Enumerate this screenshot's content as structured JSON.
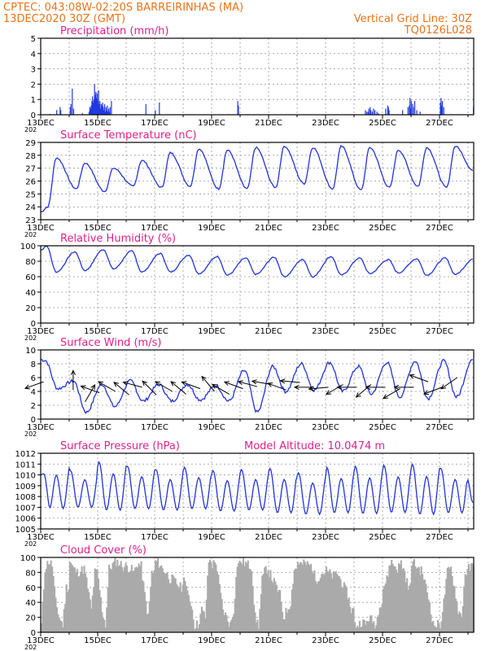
{
  "header": {
    "line1": "CPTEC:    043:08W-02:20S   BARREIRINHAS (MA)",
    "line2": "13DEC2020  30Z  (GMT)",
    "right1": "Vertical Grid Line: 30Z",
    "right2": "TQ0126L028"
  },
  "x_ticks": [
    "13DEC",
    "15DEC",
    "17DEC",
    "19DEC",
    "21DEC",
    "23DEC",
    "25DEC",
    "27DEC"
  ],
  "x_cut_label": "202",
  "colors": {
    "line": "#2233dd",
    "bar": "#1f3ae0",
    "cloud": "#aaaaaa",
    "header": "#e8731a",
    "title": "#e0208a"
  },
  "chart_data": [
    {
      "type": "bar",
      "title": "Precipitation  (mm/h)",
      "ylim": [
        0,
        5
      ],
      "yticks": [
        "0",
        "1",
        "2",
        "3",
        "4",
        "5"
      ],
      "series_desc": "hourly bars",
      "values": [
        0,
        0,
        0,
        0,
        0,
        0,
        0,
        0,
        0,
        0,
        0,
        0,
        0,
        0.05,
        0,
        0,
        0,
        0,
        0,
        0,
        0,
        0,
        0,
        0.3,
        0,
        0,
        0,
        0,
        0.5,
        0.3,
        0,
        0,
        0,
        0,
        0,
        0,
        0,
        0,
        0,
        0,
        0,
        0,
        0,
        0.5,
        0.7,
        0,
        1.7,
        0,
        0.4,
        0,
        0,
        0,
        0,
        0,
        0,
        0,
        0,
        0,
        0,
        0,
        0,
        0.1,
        0,
        0,
        0,
        0,
        0,
        0,
        0,
        0,
        0,
        0.2,
        0.5,
        0.4,
        0.6,
        0.9,
        1.2,
        0.8,
        1.0,
        2.0,
        1.3,
        1.5,
        1.1,
        1.4,
        0.9,
        1.6,
        0.7,
        0.9,
        0.4,
        0.7,
        0.6,
        0.8,
        0.5,
        0.3,
        0.7,
        0.2,
        0.5,
        0.3,
        0.6,
        0.2,
        0.4,
        0.2,
        0.5,
        0,
        0.9,
        0,
        0,
        0,
        0,
        0,
        0,
        0,
        0,
        0,
        0,
        0,
        0,
        0,
        0,
        0,
        0,
        0,
        0,
        0,
        0,
        0,
        0,
        0,
        0,
        0,
        0,
        0,
        0,
        0,
        0,
        0,
        0,
        0,
        0,
        0,
        0,
        0,
        0,
        0,
        0,
        0,
        0,
        0,
        0,
        0,
        0,
        0,
        0,
        0,
        0,
        0.7,
        0,
        0,
        0,
        0,
        0,
        0,
        0,
        0,
        0,
        0,
        0,
        0,
        0,
        0.3,
        0,
        0,
        0,
        0,
        0,
        0.8,
        0,
        0,
        0,
        0,
        0,
        0,
        0,
        0,
        0,
        0,
        0,
        0,
        0,
        0,
        0,
        0,
        0,
        0,
        0,
        0,
        0,
        0,
        0,
        0,
        0,
        0,
        0,
        0,
        0,
        0,
        0,
        0,
        0,
        0,
        0,
        0,
        0,
        0,
        0,
        0,
        0,
        0,
        0,
        0,
        0,
        0,
        0,
        0,
        0,
        0,
        0,
        0,
        0,
        0,
        0,
        0,
        0,
        0,
        0,
        0,
        0,
        0,
        0,
        0,
        0,
        0,
        0,
        0,
        0,
        0,
        0,
        0,
        0,
        0,
        0,
        0,
        0,
        0,
        0,
        0,
        0,
        0,
        0,
        0,
        0,
        0,
        0,
        0,
        0,
        0,
        0,
        0,
        0,
        0,
        0,
        0,
        0,
        0,
        0,
        0,
        0,
        0,
        0,
        0,
        0,
        0,
        0,
        0,
        0,
        0,
        0,
        0,
        0,
        0,
        0,
        0.9,
        0.6,
        0,
        0,
        0,
        0,
        0,
        0,
        0,
        0,
        0,
        0,
        0,
        0,
        0,
        0,
        0,
        0,
        0,
        0,
        0,
        0,
        0,
        0,
        0,
        0,
        0,
        0,
        0,
        0,
        0,
        0,
        0,
        0,
        0,
        0,
        0,
        0,
        0,
        0,
        0,
        0,
        0,
        0,
        0,
        0,
        0,
        0,
        0,
        0,
        0,
        0,
        0,
        0,
        0,
        0,
        0,
        0,
        0,
        0,
        0,
        0,
        0,
        0,
        0,
        0,
        0,
        0,
        0,
        0,
        0,
        0,
        0,
        0,
        0,
        0,
        0,
        0,
        0,
        0,
        0,
        0,
        0,
        0,
        0,
        0,
        0,
        0,
        0,
        0,
        0,
        0,
        0,
        0,
        0,
        0,
        0,
        0,
        0,
        0,
        0,
        0,
        0,
        0,
        0,
        0,
        0,
        0,
        0,
        0,
        0,
        0,
        0,
        0,
        0,
        0,
        0,
        0,
        0,
        0,
        0,
        0,
        0,
        0,
        0,
        0,
        0,
        0,
        0,
        0,
        0,
        0,
        0,
        0,
        0,
        0,
        0,
        0,
        0,
        0,
        0,
        0,
        0,
        0,
        0,
        0,
        0,
        0,
        0,
        0,
        0,
        0,
        0,
        0,
        0,
        0,
        0,
        0,
        0,
        0,
        0,
        0,
        0,
        0,
        0,
        0,
        0,
        0,
        0,
        0,
        0,
        0,
        0,
        0,
        0,
        0,
        0,
        0,
        0,
        0,
        0,
        0,
        0,
        0,
        0,
        0,
        0,
        0,
        0,
        0.3,
        0,
        0.2,
        0,
        0.2,
        0.4,
        0,
        0.5,
        0.3,
        0,
        0.2,
        0,
        0.4,
        0,
        0.3,
        0,
        0,
        0.2,
        0,
        0.1,
        0,
        0,
        0,
        0,
        0,
        0,
        0,
        0,
        0,
        0,
        0.4,
        0,
        0,
        0.6,
        0.5,
        0.3,
        0,
        0,
        0,
        0,
        0,
        0,
        0,
        0,
        0,
        0,
        0,
        0,
        0,
        0,
        0,
        0,
        0,
        0,
        0,
        0.3,
        0,
        0,
        0,
        0,
        0,
        0,
        0,
        0.5,
        0,
        0.6,
        1.1,
        0.4,
        0.9,
        0,
        0.7,
        0.5,
        0,
        0.9,
        0,
        0,
        0.3,
        0,
        0,
        0,
        0,
        0.2,
        0,
        0,
        0,
        0,
        0,
        0,
        0,
        0,
        0,
        0,
        0,
        0,
        0,
        0,
        0,
        0,
        0,
        0,
        0,
        0,
        0,
        0,
        0,
        0,
        0,
        0,
        0,
        0,
        0,
        0.8,
        1.1,
        0.6,
        0.9,
        0,
        0.5,
        0,
        0,
        0,
        0,
        0,
        0,
        0,
        0,
        0,
        0,
        0,
        0,
        0,
        0,
        0,
        0,
        0,
        0,
        0,
        0,
        0,
        0,
        0,
        0,
        0,
        0,
        0,
        0,
        0,
        0,
        0,
        0,
        0,
        0,
        0,
        0,
        0,
        0,
        0,
        0,
        0,
        0,
        0,
        0.5
      ]
    },
    {
      "type": "line",
      "title": "Surface Temperature  (nC)",
      "ylim": [
        23,
        29
      ],
      "yticks": [
        "23",
        "24",
        "25",
        "26",
        "27",
        "28",
        "29"
      ],
      "peaks": [
        27.8,
        27.4,
        27.0,
        27.6,
        28.2,
        28.5,
        28.4,
        28.6,
        28.7,
        28.6,
        28.7,
        28.6,
        28.4,
        28.6,
        28.7,
        28.8
      ],
      "troughs": [
        24.0,
        25.4,
        25.2,
        25.6,
        25.5,
        25.6,
        25.4,
        25.4,
        25.5,
        25.8,
        25.4,
        25.3,
        25.5,
        25.6,
        25.5,
        25.6
      ],
      "start": 23.6,
      "end": 26.8
    },
    {
      "type": "line",
      "title": "Relative Humidity  (%)",
      "ylim": [
        0,
        100
      ],
      "yticks": [
        "0",
        "20",
        "40",
        "60",
        "80",
        "100"
      ],
      "peaks": [
        100,
        92,
        95,
        93,
        90,
        88,
        86,
        84,
        85,
        82,
        86,
        84,
        82,
        83,
        84,
        83
      ],
      "troughs": [
        66,
        68,
        70,
        66,
        66,
        64,
        62,
        63,
        60,
        60,
        62,
        64,
        65,
        62,
        63,
        64
      ],
      "start": 94,
      "end": 82
    },
    {
      "type": "line",
      "title": "Surface Wind  (m/s)",
      "ylim": [
        0,
        10
      ],
      "yticks": [
        "0",
        "2",
        "4",
        "6",
        "8",
        "10"
      ],
      "peaks": [
        8.5,
        5.5,
        5.0,
        5.5,
        5.0,
        5.0,
        4.8,
        7.0,
        7.6,
        8.0,
        8.2,
        7.6,
        8.2,
        8.4,
        8.4,
        8.6
      ],
      "troughs": [
        4.4,
        1.0,
        1.8,
        2.6,
        2.6,
        2.8,
        2.6,
        1.0,
        4.0,
        4.2,
        4.0,
        3.6,
        3.2,
        3.0,
        3.2,
        3.4
      ],
      "start": 8.6,
      "end": 8.4,
      "arrows": [
        {
          "x": 0.05,
          "speed": 5.4,
          "dir_deg": 200
        },
        {
          "x": 0.57,
          "speed": 4.2,
          "dir_deg": 90
        },
        {
          "x": 0.78,
          "speed": 2.5,
          "dir_deg": 60
        },
        {
          "x": 1.03,
          "speed": 3.8,
          "dir_deg": 160
        },
        {
          "x": 1.31,
          "speed": 4.0,
          "dir_deg": 150
        },
        {
          "x": 1.55,
          "speed": 3.5,
          "dir_deg": 140
        },
        {
          "x": 1.78,
          "speed": 4.6,
          "dir_deg": 165
        },
        {
          "x": 2.03,
          "speed": 3.5,
          "dir_deg": 135
        },
        {
          "x": 2.31,
          "speed": 4.0,
          "dir_deg": 150
        },
        {
          "x": 2.55,
          "speed": 3.6,
          "dir_deg": 140
        },
        {
          "x": 2.8,
          "speed": 4.4,
          "dir_deg": 160
        },
        {
          "x": 3.05,
          "speed": 4.0,
          "dir_deg": 130
        },
        {
          "x": 3.31,
          "speed": 3.6,
          "dir_deg": 150
        },
        {
          "x": 3.55,
          "speed": 4.4,
          "dir_deg": 160
        },
        {
          "x": 3.8,
          "speed": 4.7,
          "dir_deg": 165
        },
        {
          "x": 4.05,
          "speed": 5.0,
          "dir_deg": 170
        },
        {
          "x": 4.31,
          "speed": 4.2,
          "dir_deg": 160
        },
        {
          "x": 4.55,
          "speed": 5.3,
          "dir_deg": 175
        },
        {
          "x": 4.8,
          "speed": 4.6,
          "dir_deg": 180
        },
        {
          "x": 5.05,
          "speed": 4.6,
          "dir_deg": 185
        },
        {
          "x": 5.31,
          "speed": 5.0,
          "dir_deg": 210
        },
        {
          "x": 5.55,
          "speed": 4.6,
          "dir_deg": 180
        },
        {
          "x": 5.8,
          "speed": 5.0,
          "dir_deg": 220
        },
        {
          "x": 6.05,
          "speed": 4.6,
          "dir_deg": 180
        },
        {
          "x": 6.31,
          "speed": 4.4,
          "dir_deg": 210
        },
        {
          "x": 6.55,
          "speed": 4.6,
          "dir_deg": 180
        },
        {
          "x": 6.8,
          "speed": 5.4,
          "dir_deg": 160
        },
        {
          "x": 7.05,
          "speed": 4.6,
          "dir_deg": 200
        },
        {
          "x": 7.31,
          "speed": 6.0,
          "dir_deg": 215
        }
      ]
    },
    {
      "type": "line",
      "title": "Surface Pressure  (hPa)",
      "subtitle": "Model Altitude: 10.0474 m",
      "ylim": [
        1005,
        1012
      ],
      "yticks": [
        "1005",
        "1006",
        "1007",
        "1008",
        "1009",
        "1010",
        "1011",
        "1012"
      ],
      "semi_diurnal": true,
      "highs": [
        1011.0,
        1010.4,
        1011.2,
        1010.8,
        1010.5,
        1010.7,
        1010.4,
        1010.5,
        1010.6,
        1010.2,
        1010.7,
        1010.8,
        1010.9,
        1011.0,
        1010.6,
        1010.4
      ],
      "lows": [
        1006.4,
        1006.6,
        1006.2,
        1006.4,
        1006.3,
        1006.4,
        1006.2,
        1006.3,
        1006.0,
        1005.9,
        1006.0,
        1005.9,
        1006.0,
        1005.8,
        1006.0,
        1005.1
      ],
      "start": 1010.0,
      "end": 1007.4
    },
    {
      "type": "area",
      "title": "Cloud Cover  (%)",
      "ylim": [
        0,
        100
      ],
      "yticks": [
        "0",
        "20",
        "40",
        "60",
        "80",
        "100"
      ],
      "days": [
        [
          10,
          85,
          95,
          90,
          40,
          20,
          10,
          60
        ],
        [
          95,
          85,
          80,
          82,
          85,
          60,
          30,
          80
        ],
        [
          70,
          30,
          10,
          85,
          90,
          95,
          92,
          88
        ],
        [
          88,
          85,
          80,
          92,
          88,
          50,
          20,
          80
        ],
        [
          95,
          92,
          85,
          80,
          72,
          70,
          65,
          60
        ],
        [
          80,
          50,
          40,
          10,
          10,
          30,
          20,
          95
        ],
        [
          90,
          95,
          60,
          30,
          20,
          10,
          30,
          92
        ],
        [
          95,
          93,
          90,
          88,
          20,
          10,
          70,
          85
        ],
        [
          80,
          70,
          60,
          50,
          20,
          30,
          40,
          85
        ],
        [
          95,
          90,
          92,
          90,
          88,
          70,
          75,
          80
        ],
        [
          82,
          78,
          75,
          80,
          70,
          60,
          50,
          30
        ],
        [
          10,
          10,
          15,
          10,
          20,
          15,
          10,
          40
        ],
        [
          60,
          70,
          95,
          90,
          85,
          93,
          80,
          60
        ],
        [
          95,
          90,
          85,
          80,
          60,
          40,
          10,
          10
        ],
        [
          10,
          40,
          80,
          85,
          60,
          30,
          20,
          80
        ],
        [
          85,
          88,
          82,
          86,
          85,
          82,
          84,
          86
        ]
      ]
    }
  ]
}
